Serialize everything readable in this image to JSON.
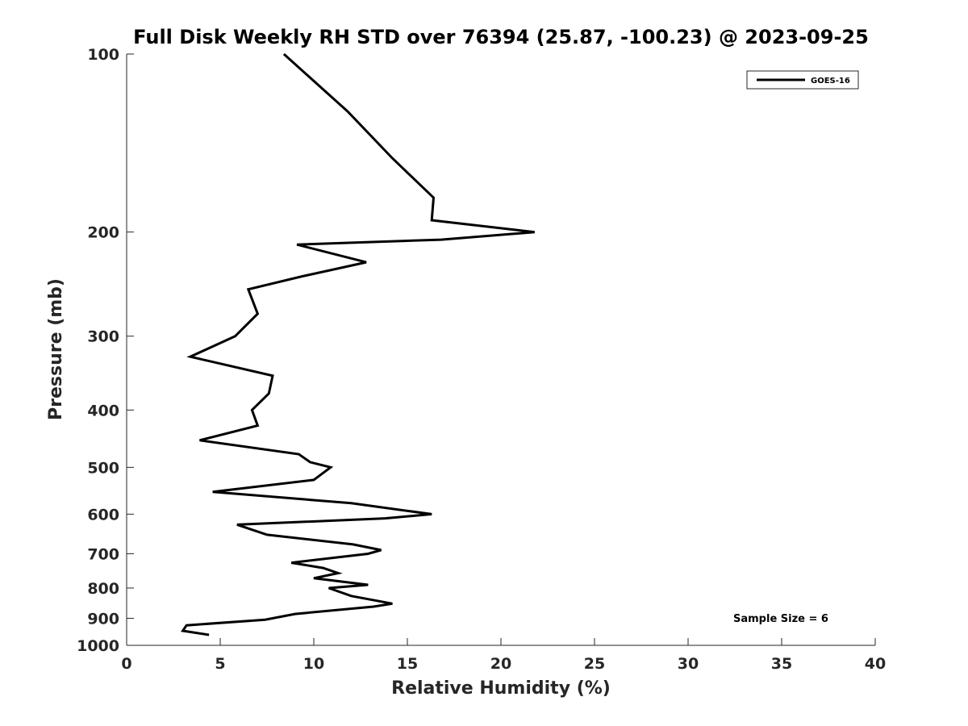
{
  "chart_data": {
    "type": "line",
    "title": "Full Disk Weekly RH STD over 76394 (25.87, -100.23) @ 2023-09-25",
    "xlabel": "Relative Humidity (%)",
    "ylabel": "Pressure (mb)",
    "xlim": [
      0,
      40
    ],
    "ylim": [
      1000,
      100
    ],
    "yscale": "log",
    "y_inverted": true,
    "x_ticks": [
      0,
      5,
      10,
      15,
      20,
      25,
      30,
      35,
      40
    ],
    "y_ticks": [
      100,
      200,
      300,
      400,
      500,
      600,
      700,
      800,
      900,
      1000
    ],
    "grid": false,
    "legend": {
      "position": "top-right",
      "entries": [
        "GOES-16"
      ]
    },
    "annotation": "Sample Size = 6",
    "series": [
      {
        "name": "GOES-16",
        "color": "#000000",
        "points": [
          [
            8.4,
            100
          ],
          [
            11.8,
            125
          ],
          [
            14.2,
            150
          ],
          [
            16.4,
            175
          ],
          [
            16.3,
            191
          ],
          [
            21.8,
            200
          ],
          [
            16.8,
            206
          ],
          [
            9.1,
            210
          ],
          [
            12.8,
            225
          ],
          [
            9.3,
            238
          ],
          [
            6.5,
            250
          ],
          [
            7.0,
            275
          ],
          [
            5.8,
            300
          ],
          [
            3.4,
            325
          ],
          [
            7.8,
            350
          ],
          [
            7.6,
            375
          ],
          [
            6.7,
            400
          ],
          [
            7.0,
            425
          ],
          [
            3.9,
            450
          ],
          [
            9.2,
            475
          ],
          [
            9.8,
            490
          ],
          [
            10.9,
            500
          ],
          [
            10.0,
            525
          ],
          [
            4.6,
            550
          ],
          [
            12.0,
            575
          ],
          [
            16.3,
            600
          ],
          [
            13.8,
            610
          ],
          [
            5.9,
            625
          ],
          [
            7.5,
            650
          ],
          [
            12.1,
            675
          ],
          [
            13.6,
            690
          ],
          [
            12.9,
            700
          ],
          [
            8.8,
            725
          ],
          [
            10.5,
            740
          ],
          [
            11.3,
            755
          ],
          [
            10.0,
            770
          ],
          [
            12.9,
            790
          ],
          [
            10.8,
            800
          ],
          [
            12.0,
            825
          ],
          [
            14.2,
            850
          ],
          [
            13.2,
            860
          ],
          [
            9.0,
            885
          ],
          [
            7.4,
            905
          ],
          [
            3.2,
            925
          ],
          [
            3.0,
            945
          ],
          [
            4.4,
            960
          ]
        ]
      }
    ]
  }
}
